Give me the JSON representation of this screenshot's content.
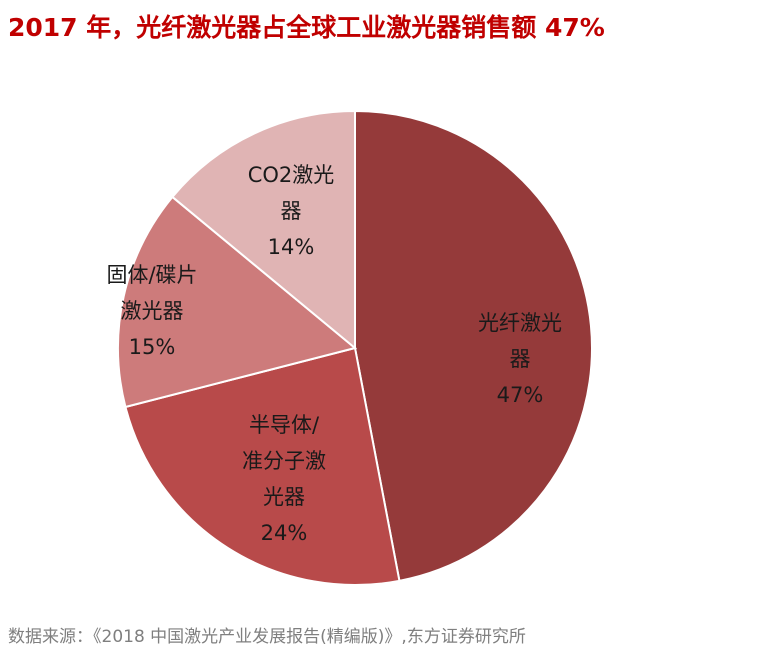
{
  "chart_data": {
    "type": "pie",
    "title": "2017 年，光纤激光器占全球工业激光器销售额 47%",
    "slices": [
      {
        "label_lines": [
          "光纤激光",
          "器"
        ],
        "value": 47,
        "value_label": "47%",
        "color": "#953a3a"
      },
      {
        "label_lines": [
          "半导体/",
          "准分子激",
          "光器"
        ],
        "value": 24,
        "value_label": "24%",
        "color": "#b84a4a"
      },
      {
        "label_lines": [
          "固体/碟片",
          "激光器"
        ],
        "value": 15,
        "value_label": "15%",
        "color": "#cd7b7b"
      },
      {
        "label_lines": [
          "CO2激光",
          "器"
        ],
        "value": 14,
        "value_label": "14%",
        "color": "#e0b4b4"
      }
    ],
    "source": "数据来源：《2018 中国激光产业发展报告(精编版)》,东方证券研究所"
  }
}
